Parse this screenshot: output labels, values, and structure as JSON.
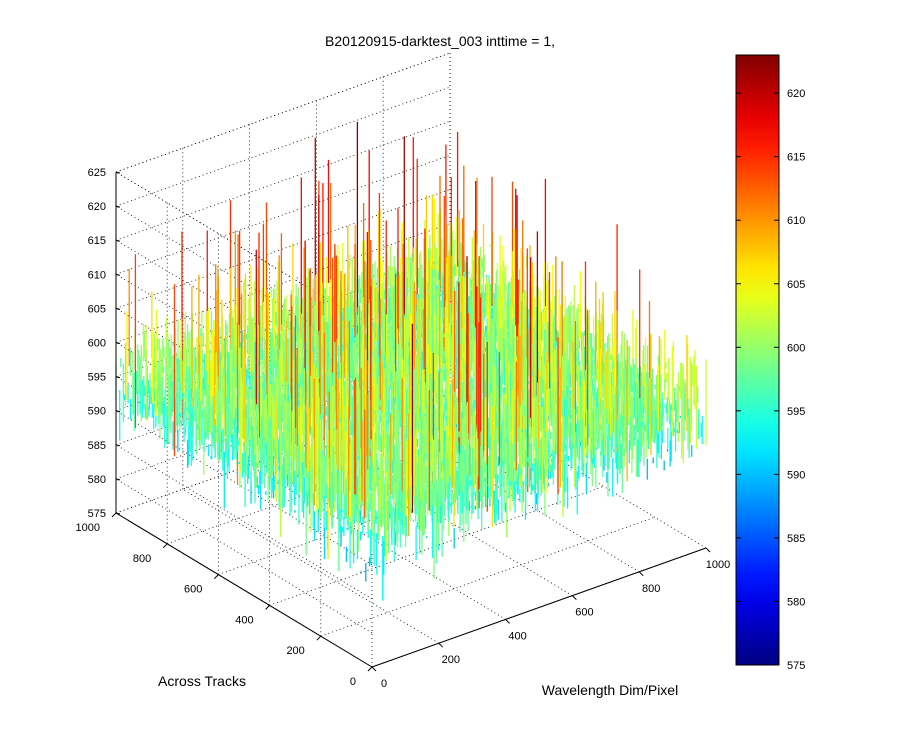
{
  "chart_data": {
    "type": "surface-3d",
    "title": "B20120915-darktest_003 inttime = 1,",
    "xlabel": "Wavelength Dim/Pixel",
    "ylabel": "Across Tracks",
    "zlabel": "",
    "xlim": [
      0,
      1000
    ],
    "ylim": [
      0,
      1000
    ],
    "zlim": [
      575,
      625
    ],
    "xticks": [
      "0",
      "200",
      "400",
      "600",
      "800",
      "1000"
    ],
    "yticks": [
      "0",
      "200",
      "400",
      "600",
      "800",
      "1000"
    ],
    "zticks": [
      "575",
      "580",
      "585",
      "590",
      "595",
      "600",
      "605",
      "610",
      "615",
      "620",
      "625"
    ],
    "colormap": "jet",
    "colorbar": {
      "range": [
        575,
        623
      ],
      "ticks": [
        "575",
        "580",
        "585",
        "590",
        "595",
        "600",
        "605",
        "610",
        "615",
        "620"
      ]
    },
    "grid": true,
    "value_summary": {
      "typical_level": 593,
      "min_approx": 575,
      "max_approx": 623,
      "noise": "dense random dark-frame noise over the full 1000 x 1000 grid"
    }
  }
}
